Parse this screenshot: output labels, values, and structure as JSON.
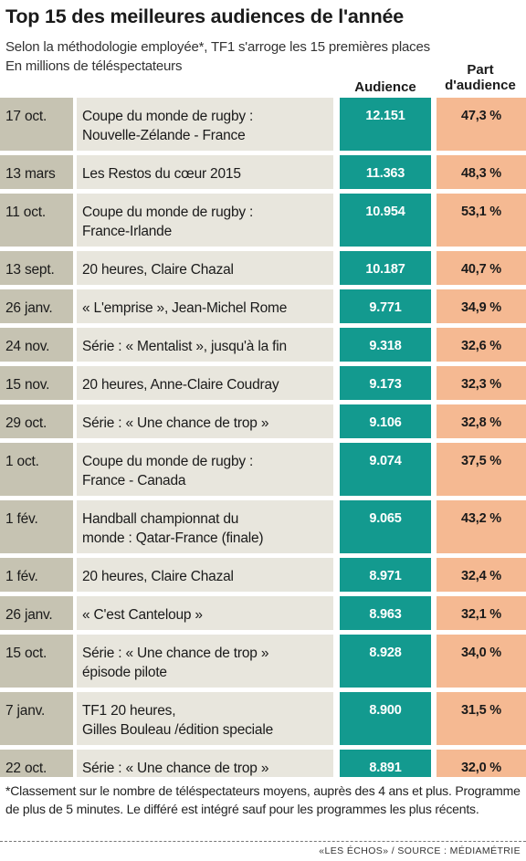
{
  "title": "Top 15 des meilleures audiences de l'année",
  "subtitle": "Selon la méthodologie employée*, TF1 s'arroge les 15 premières places",
  "unit_note": "En millions de téléspectateurs",
  "columns": {
    "audience": "Audience",
    "part": "Part d'audience"
  },
  "chart_data": {
    "type": "table",
    "rows": [
      {
        "date": "17 oct.",
        "programme": [
          "Coupe du monde de rugby :",
          "Nouvelle-Zélande - France"
        ],
        "audience": "12.151",
        "part": "47,3 %"
      },
      {
        "date": "13 mars",
        "programme": [
          "Les Restos du cœur 2015"
        ],
        "audience": "11.363",
        "part": "48,3 %"
      },
      {
        "date": "11 oct.",
        "programme": [
          "Coupe du monde de rugby :",
          "France-Irlande"
        ],
        "audience": "10.954",
        "part": "53,1 %"
      },
      {
        "date": "13 sept.",
        "programme": [
          "20 heures, Claire Chazal"
        ],
        "audience": "10.187",
        "part": "40,7 %"
      },
      {
        "date": "26 janv.",
        "programme": [
          "« L'emprise », Jean-Michel Rome"
        ],
        "audience": "9.771",
        "part": "34,9 %"
      },
      {
        "date": "24 nov.",
        "programme": [
          "Série : « Mentalist », jusqu'à la fin"
        ],
        "audience": "9.318",
        "part": "32,6 %"
      },
      {
        "date": "15 nov.",
        "programme": [
          "20 heures, Anne-Claire Coudray"
        ],
        "audience": "9.173",
        "part": "32,3 %"
      },
      {
        "date": "29 oct.",
        "programme": [
          "Série : « Une chance de trop »"
        ],
        "audience": "9.106",
        "part": "32,8 %"
      },
      {
        "date": "1 oct.",
        "programme": [
          "Coupe du monde de rugby :",
          "France - Canada"
        ],
        "audience": "9.074",
        "part": "37,5 %"
      },
      {
        "date": "1 fév.",
        "programme": [
          "Handball championnat du",
          "monde : Qatar-France (finale)"
        ],
        "audience": "9.065",
        "part": "43,2 %"
      },
      {
        "date": "1 fév.",
        "programme": [
          "20 heures, Claire Chazal"
        ],
        "audience": "8.971",
        "part": "32,4 %"
      },
      {
        "date": "26 janv.",
        "programme": [
          "« C'est Canteloup »"
        ],
        "audience": "8.963",
        "part": "32,1 %"
      },
      {
        "date": "15 oct.",
        "programme": [
          "Série : « Une chance de trop »",
          "épisode pilote"
        ],
        "audience": "8.928",
        "part": "34,0 %"
      },
      {
        "date": "7 janv.",
        "programme": [
          "TF1 20 heures,",
          "Gilles Bouleau /édition speciale"
        ],
        "audience": "8.900",
        "part": "31,5 %"
      },
      {
        "date": "22 oct.",
        "programme": [
          "Série : « Une chance de trop »"
        ],
        "audience": "8.891",
        "part": "32,0 %"
      }
    ]
  },
  "footnote": "*Classement sur le nombre de téléspectateurs moyens, auprès des 4 ans et plus. Programme de plus de 5 minutes. Le différé est intégré sauf pour les programmes les plus récents.",
  "source": "«LES ÉCHOS» / SOURCE : MÉDIAMÉTRIE"
}
